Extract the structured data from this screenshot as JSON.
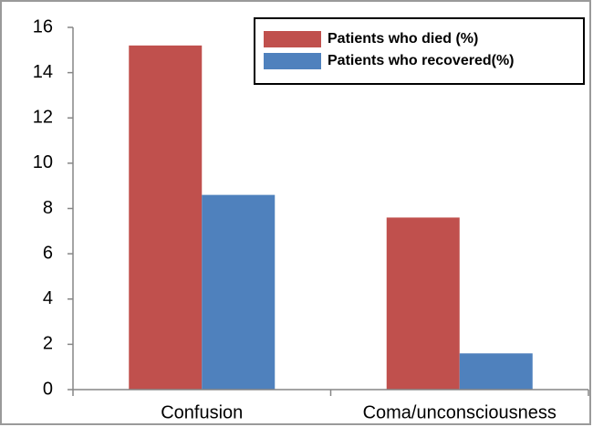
{
  "chart_data": {
    "type": "bar",
    "categories": [
      "Confusion",
      "Coma/unconsciousness"
    ],
    "series": [
      {
        "name": "Patients who died (%)",
        "color": "#c0504d",
        "values": [
          15.2,
          7.6
        ]
      },
      {
        "name": "Patients who recovered(%)",
        "color": "#4f81bd",
        "values": [
          8.6,
          1.6
        ]
      }
    ],
    "ylim": [
      0,
      16
    ],
    "yticks": [
      0,
      2,
      4,
      6,
      8,
      10,
      12,
      14,
      16
    ],
    "grid": false,
    "legend": "upper right"
  }
}
